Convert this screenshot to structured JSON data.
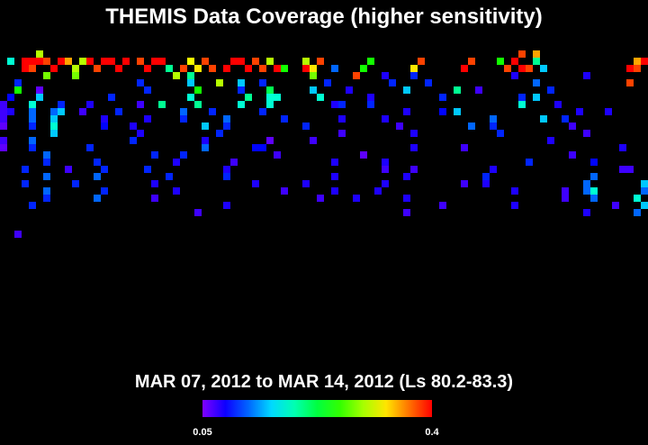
{
  "chart_data": {
    "type": "heatmap",
    "title": "THEMIS Data Coverage (higher sensitivity)",
    "subtitle": "MAR 07, 2012 to MAR 14, 2012 (Ls 80.2-83.3)",
    "cells": [
      [
        5,
        0,
        0.3
      ],
      [
        72,
        0,
        0.38
      ],
      [
        74,
        0,
        0.35
      ],
      [
        1,
        1,
        0.18
      ],
      [
        3,
        1,
        0.4
      ],
      [
        4,
        1,
        0.4
      ],
      [
        5,
        1,
        0.4
      ],
      [
        6,
        1,
        0.38
      ],
      [
        8,
        1,
        0.4
      ],
      [
        9,
        1,
        0.35
      ],
      [
        11,
        1,
        0.3
      ],
      [
        12,
        1,
        0.4
      ],
      [
        14,
        1,
        0.4
      ],
      [
        15,
        1,
        0.4
      ],
      [
        17,
        1,
        0.4
      ],
      [
        19,
        1,
        0.38
      ],
      [
        21,
        1,
        0.4
      ],
      [
        22,
        1,
        0.4
      ],
      [
        26,
        1,
        0.32
      ],
      [
        28,
        1,
        0.38
      ],
      [
        32,
        1,
        0.4
      ],
      [
        33,
        1,
        0.4
      ],
      [
        35,
        1,
        0.38
      ],
      [
        37,
        1,
        0.3
      ],
      [
        42,
        1,
        0.3
      ],
      [
        44,
        1,
        0.38
      ],
      [
        51,
        1,
        0.25
      ],
      [
        58,
        1,
        0.38
      ],
      [
        65,
        1,
        0.38
      ],
      [
        69,
        1,
        0.25
      ],
      [
        71,
        1,
        0.4
      ],
      [
        74,
        1,
        0.2
      ],
      [
        88,
        1,
        0.35
      ],
      [
        89,
        1,
        0.4
      ],
      [
        3,
        2,
        0.4
      ],
      [
        4,
        2,
        0.38
      ],
      [
        7,
        2,
        0.4
      ],
      [
        10,
        2,
        0.3
      ],
      [
        13,
        2,
        0.38
      ],
      [
        16,
        2,
        0.4
      ],
      [
        20,
        2,
        0.4
      ],
      [
        23,
        2,
        0.2
      ],
      [
        25,
        2,
        0.38
      ],
      [
        27,
        2,
        0.33
      ],
      [
        29,
        2,
        0.38
      ],
      [
        31,
        2,
        0.4
      ],
      [
        34,
        2,
        0.4
      ],
      [
        36,
        2,
        0.38
      ],
      [
        38,
        2,
        0.4
      ],
      [
        39,
        2,
        0.25
      ],
      [
        42,
        2,
        0.4
      ],
      [
        43,
        2,
        0.33
      ],
      [
        46,
        2,
        0.12
      ],
      [
        50,
        2,
        0.25
      ],
      [
        57,
        2,
        0.33
      ],
      [
        64,
        2,
        0.4
      ],
      [
        70,
        2,
        0.38
      ],
      [
        72,
        2,
        0.4
      ],
      [
        73,
        2,
        0.38
      ],
      [
        75,
        2,
        0.15
      ],
      [
        87,
        2,
        0.4
      ],
      [
        88,
        2,
        0.38
      ],
      [
        6,
        3,
        0.28
      ],
      [
        10,
        3,
        0.28
      ],
      [
        24,
        3,
        0.3
      ],
      [
        26,
        3,
        0.2
      ],
      [
        43,
        3,
        0.28
      ],
      [
        49,
        3,
        0.38
      ],
      [
        53,
        3,
        0.08
      ],
      [
        57,
        3,
        0.1
      ],
      [
        71,
        3,
        0.08
      ],
      [
        81,
        3,
        0.08
      ],
      [
        2,
        4,
        0.1
      ],
      [
        19,
        4,
        0.1
      ],
      [
        26,
        4,
        0.15
      ],
      [
        30,
        4,
        0.3
      ],
      [
        33,
        4,
        0.15
      ],
      [
        36,
        4,
        0.1
      ],
      [
        45,
        4,
        0.1
      ],
      [
        54,
        4,
        0.1
      ],
      [
        59,
        4,
        0.1
      ],
      [
        74,
        4,
        0.12
      ],
      [
        87,
        4,
        0.38
      ],
      [
        2,
        5,
        0.25
      ],
      [
        5,
        5,
        0.06
      ],
      [
        20,
        5,
        0.1
      ],
      [
        27,
        5,
        0.25
      ],
      [
        33,
        5,
        0.1
      ],
      [
        37,
        5,
        0.22
      ],
      [
        43,
        5,
        0.15
      ],
      [
        48,
        5,
        0.08
      ],
      [
        56,
        5,
        0.15
      ],
      [
        63,
        5,
        0.2
      ],
      [
        66,
        5,
        0.07
      ],
      [
        76,
        5,
        0.1
      ],
      [
        1,
        6,
        0.09
      ],
      [
        5,
        6,
        0.15
      ],
      [
        15,
        6,
        0.1
      ],
      [
        26,
        6,
        0.18
      ],
      [
        34,
        6,
        0.2
      ],
      [
        37,
        6,
        0.18
      ],
      [
        38,
        6,
        0.18
      ],
      [
        44,
        6,
        0.18
      ],
      [
        51,
        6,
        0.08
      ],
      [
        61,
        6,
        0.1
      ],
      [
        72,
        6,
        0.1
      ],
      [
        74,
        6,
        0.15
      ],
      [
        0,
        7,
        0.07
      ],
      [
        4,
        7,
        0.18
      ],
      [
        8,
        7,
        0.1
      ],
      [
        12,
        7,
        0.08
      ],
      [
        19,
        7,
        0.07
      ],
      [
        22,
        7,
        0.2
      ],
      [
        27,
        7,
        0.2
      ],
      [
        33,
        7,
        0.18
      ],
      [
        37,
        7,
        0.18
      ],
      [
        46,
        7,
        0.08
      ],
      [
        47,
        7,
        0.1
      ],
      [
        51,
        7,
        0.1
      ],
      [
        72,
        7,
        0.18
      ],
      [
        77,
        7,
        0.08
      ],
      [
        0,
        8,
        0.07
      ],
      [
        1,
        8,
        0.08
      ],
      [
        4,
        8,
        0.12
      ],
      [
        7,
        8,
        0.12
      ],
      [
        8,
        8,
        0.15
      ],
      [
        11,
        8,
        0.07
      ],
      [
        16,
        8,
        0.1
      ],
      [
        25,
        8,
        0.12
      ],
      [
        29,
        8,
        0.1
      ],
      [
        36,
        8,
        0.1
      ],
      [
        56,
        8,
        0.08
      ],
      [
        61,
        8,
        0.09
      ],
      [
        63,
        8,
        0.15
      ],
      [
        80,
        8,
        0.08
      ],
      [
        84,
        8,
        0.08
      ],
      [
        0,
        9,
        0.07
      ],
      [
        4,
        9,
        0.12
      ],
      [
        7,
        9,
        0.15
      ],
      [
        14,
        9,
        0.08
      ],
      [
        20,
        9,
        0.08
      ],
      [
        25,
        9,
        0.1
      ],
      [
        31,
        9,
        0.12
      ],
      [
        39,
        9,
        0.1
      ],
      [
        47,
        9,
        0.08
      ],
      [
        53,
        9,
        0.08
      ],
      [
        68,
        9,
        0.12
      ],
      [
        75,
        9,
        0.15
      ],
      [
        78,
        9,
        0.1
      ],
      [
        0,
        10,
        0.06
      ],
      [
        4,
        10,
        0.1
      ],
      [
        7,
        10,
        0.18
      ],
      [
        14,
        10,
        0.09
      ],
      [
        18,
        10,
        0.08
      ],
      [
        28,
        10,
        0.15
      ],
      [
        31,
        10,
        0.1
      ],
      [
        42,
        10,
        0.1
      ],
      [
        55,
        10,
        0.07
      ],
      [
        65,
        10,
        0.12
      ],
      [
        68,
        10,
        0.1
      ],
      [
        79,
        10,
        0.07
      ],
      [
        7,
        11,
        0.15
      ],
      [
        19,
        11,
        0.08
      ],
      [
        30,
        11,
        0.1
      ],
      [
        47,
        11,
        0.07
      ],
      [
        57,
        11,
        0.08
      ],
      [
        69,
        11,
        0.1
      ],
      [
        81,
        11,
        0.07
      ],
      [
        0,
        12,
        0.07
      ],
      [
        4,
        12,
        0.12
      ],
      [
        18,
        12,
        0.1
      ],
      [
        28,
        12,
        0.08
      ],
      [
        37,
        12,
        0.06
      ],
      [
        43,
        12,
        0.07
      ],
      [
        76,
        12,
        0.08
      ],
      [
        0,
        13,
        0.06
      ],
      [
        4,
        13,
        0.1
      ],
      [
        12,
        13,
        0.1
      ],
      [
        28,
        13,
        0.12
      ],
      [
        35,
        13,
        0.09
      ],
      [
        36,
        13,
        0.09
      ],
      [
        57,
        13,
        0.08
      ],
      [
        64,
        13,
        0.07
      ],
      [
        86,
        13,
        0.08
      ],
      [
        6,
        14,
        0.12
      ],
      [
        21,
        14,
        0.1
      ],
      [
        25,
        14,
        0.1
      ],
      [
        38,
        14,
        0.07
      ],
      [
        50,
        14,
        0.06
      ],
      [
        79,
        14,
        0.07
      ],
      [
        6,
        15,
        0.1
      ],
      [
        13,
        15,
        0.1
      ],
      [
        24,
        15,
        0.08
      ],
      [
        32,
        15,
        0.07
      ],
      [
        46,
        15,
        0.08
      ],
      [
        53,
        15,
        0.08
      ],
      [
        73,
        15,
        0.1
      ],
      [
        82,
        15,
        0.09
      ],
      [
        3,
        16,
        0.1
      ],
      [
        9,
        16,
        0.07
      ],
      [
        14,
        16,
        0.1
      ],
      [
        20,
        16,
        0.1
      ],
      [
        31,
        16,
        0.08
      ],
      [
        53,
        16,
        0.07
      ],
      [
        57,
        16,
        0.07
      ],
      [
        68,
        16,
        0.08
      ],
      [
        86,
        16,
        0.07
      ],
      [
        87,
        16,
        0.07
      ],
      [
        6,
        17,
        0.12
      ],
      [
        13,
        17,
        0.12
      ],
      [
        23,
        17,
        0.1
      ],
      [
        31,
        17,
        0.1
      ],
      [
        46,
        17,
        0.08
      ],
      [
        56,
        17,
        0.08
      ],
      [
        67,
        17,
        0.1
      ],
      [
        82,
        17,
        0.12
      ],
      [
        3,
        18,
        0.1
      ],
      [
        10,
        18,
        0.1
      ],
      [
        21,
        18,
        0.08
      ],
      [
        35,
        18,
        0.08
      ],
      [
        42,
        18,
        0.08
      ],
      [
        53,
        18,
        0.08
      ],
      [
        64,
        18,
        0.07
      ],
      [
        67,
        18,
        0.08
      ],
      [
        81,
        18,
        0.12
      ],
      [
        89,
        18,
        0.15
      ],
      [
        6,
        19,
        0.12
      ],
      [
        14,
        19,
        0.1
      ],
      [
        24,
        19,
        0.08
      ],
      [
        39,
        19,
        0.07
      ],
      [
        46,
        19,
        0.08
      ],
      [
        52,
        19,
        0.08
      ],
      [
        71,
        19,
        0.08
      ],
      [
        78,
        19,
        0.07
      ],
      [
        81,
        19,
        0.12
      ],
      [
        82,
        19,
        0.18
      ],
      [
        89,
        19,
        0.12
      ],
      [
        6,
        20,
        0.1
      ],
      [
        13,
        20,
        0.12
      ],
      [
        21,
        20,
        0.07
      ],
      [
        44,
        20,
        0.07
      ],
      [
        49,
        20,
        0.08
      ],
      [
        56,
        20,
        0.08
      ],
      [
        78,
        20,
        0.07
      ],
      [
        82,
        20,
        0.12
      ],
      [
        88,
        20,
        0.18
      ],
      [
        4,
        21,
        0.1
      ],
      [
        31,
        21,
        0.08
      ],
      [
        61,
        21,
        0.07
      ],
      [
        71,
        21,
        0.08
      ],
      [
        85,
        21,
        0.07
      ],
      [
        89,
        21,
        0.15
      ],
      [
        27,
        22,
        0.07
      ],
      [
        56,
        22,
        0.07
      ],
      [
        81,
        22,
        0.08
      ],
      [
        88,
        22,
        0.12
      ],
      [
        2,
        25,
        0.07
      ]
    ],
    "colorbar": {
      "lim": [
        0.05,
        0.4
      ],
      "ticks": [
        0.05,
        0.4
      ]
    }
  }
}
